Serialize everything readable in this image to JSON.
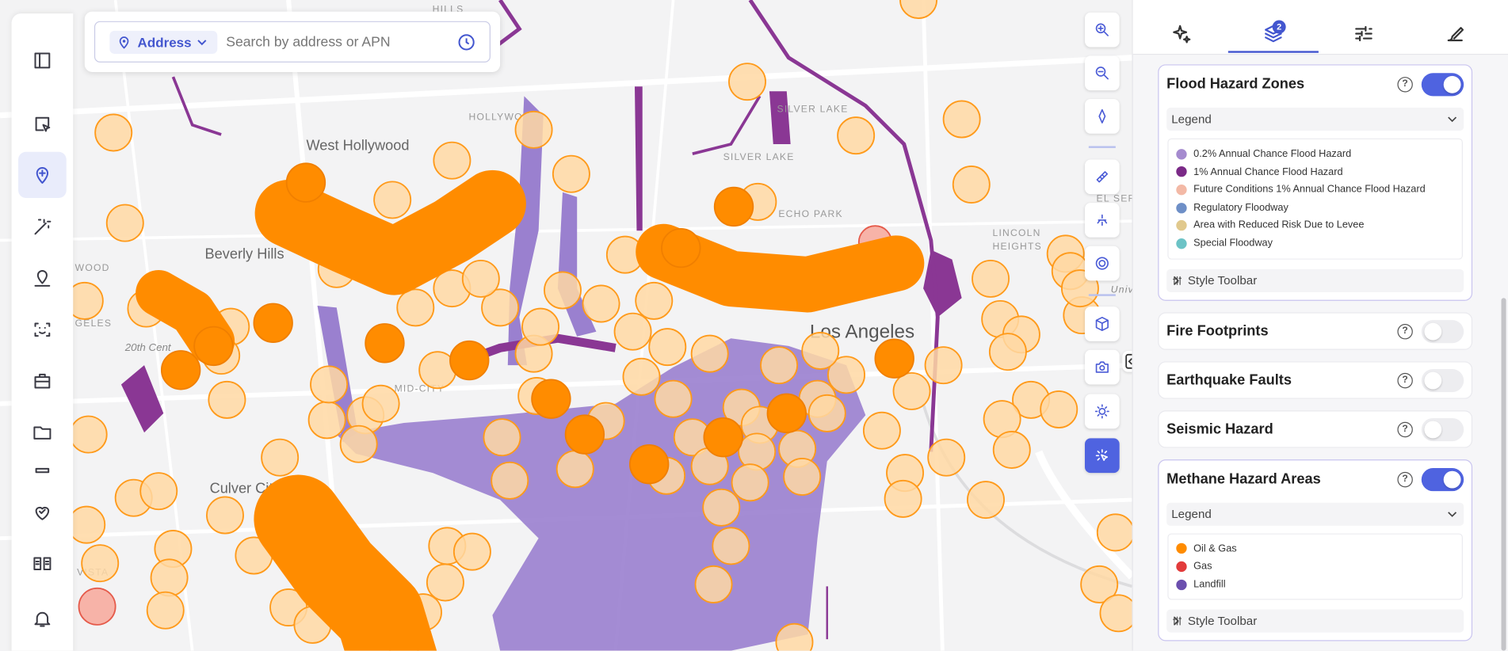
{
  "search": {
    "mode": "Address",
    "placeholder": "Search by address or APN"
  },
  "tabs": {
    "layers_badge": "2"
  },
  "map_labels": [
    "HILLS",
    "HOLLYWOOD",
    "West Hollywood",
    "SILVER LAKE",
    "SILVER LAKE",
    "ECHO PARK",
    "Beverly Hills",
    "WOOD",
    "GELES",
    "20th Cent",
    "Culver City",
    "VISTA",
    "LINCOLN",
    "HEIGHTS",
    "EL SER",
    "Univ",
    "Los Angeles",
    "MID-CITY"
  ],
  "layers": [
    {
      "name": "Flood Hazard Zones",
      "enabled": true,
      "legend_title": "Legend",
      "legend": [
        {
          "label": "0.2% Annual Chance Flood Hazard",
          "color": "#a58bcf"
        },
        {
          "label": "1% Annual Chance Flood Hazard",
          "color": "#7b2a87"
        },
        {
          "label": "Future Conditions 1% Annual Chance Flood Hazard",
          "color": "#f3b9a6"
        },
        {
          "label": "Regulatory Floodway",
          "color": "#6e8fc7"
        },
        {
          "label": "Area with Reduced Risk Due to Levee",
          "color": "#e1c98d"
        },
        {
          "label": "Special Floodway",
          "color": "#6cc3c6"
        }
      ],
      "style_toolbar": "Style Toolbar"
    },
    {
      "name": "Fire Footprints",
      "enabled": false
    },
    {
      "name": "Earthquake Faults",
      "enabled": false
    },
    {
      "name": "Seismic Hazard",
      "enabled": false
    },
    {
      "name": "Methane Hazard Areas",
      "enabled": true,
      "legend_title": "Legend",
      "legend": [
        {
          "label": "Oil & Gas",
          "color": "#ff8c00"
        },
        {
          "label": "Gas",
          "color": "#e23b3b"
        },
        {
          "label": "Landfill",
          "color": "#6b4fae"
        }
      ],
      "style_toolbar": "Style Toolbar"
    }
  ]
}
